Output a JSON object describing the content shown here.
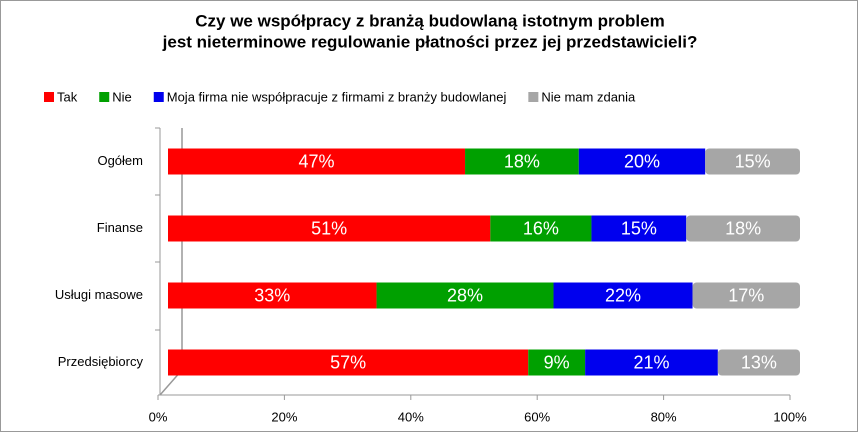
{
  "chart_data": {
    "type": "stacked-bar-horizontal",
    "title": [
      "Czy we współpracy z branżą budowlaną istotnym problem",
      "jest nieterminowe regulowanie płatności przez jej przedstawicieli?"
    ],
    "categories": [
      "Ogółem",
      "Finanse",
      "Usługi masowe",
      "Przedsiębiorcy"
    ],
    "series": [
      {
        "name": "Tak",
        "color": "#ff0000",
        "values": [
          47,
          51,
          33,
          57
        ],
        "value_labels": [
          "47%",
          "51%",
          "33%",
          "57%"
        ]
      },
      {
        "name": "Nie",
        "color": "#00a000",
        "values": [
          18,
          16,
          28,
          9
        ],
        "value_labels": [
          "18%",
          "16%",
          "28%",
          "9%"
        ]
      },
      {
        "name": "Moja firma nie współpracuje z firmami z branży budowlanej",
        "color": "#0000ee",
        "values": [
          20,
          15,
          22,
          21
        ],
        "value_labels": [
          "20%",
          "15%",
          "22%",
          "21%"
        ]
      },
      {
        "name": "Nie mam zdania",
        "color": "#a6a6a6",
        "values": [
          15,
          18,
          17,
          13
        ],
        "value_labels": [
          "15%",
          "18%",
          "17%",
          "13%"
        ]
      }
    ],
    "xlim": [
      0,
      100
    ],
    "xticks": [
      {
        "value": 0,
        "label": "0%"
      },
      {
        "value": 20,
        "label": "20%"
      },
      {
        "value": 40,
        "label": "40%"
      },
      {
        "value": 60,
        "label": "60%"
      },
      {
        "value": 80,
        "label": "80%"
      },
      {
        "value": 100,
        "label": "100%"
      }
    ],
    "legend": "top"
  }
}
